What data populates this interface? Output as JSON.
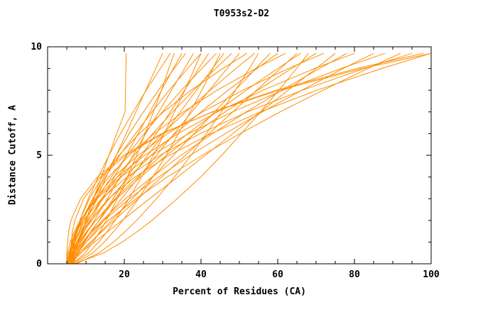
{
  "title": "T0953s2-D2",
  "chart_data": {
    "type": "line",
    "title": "T0953s2-D2",
    "xlabel": "Percent of Residues (CA)",
    "ylabel": "Distance Cutoff, A",
    "xlim": [
      0,
      100
    ],
    "ylim": [
      0,
      10
    ],
    "grid": false,
    "legend": "none",
    "line_color": "#ff8c00",
    "axis_color": "#000000",
    "x_ticks": {
      "major": [
        0,
        20,
        40,
        60,
        80,
        100
      ],
      "minor_step": 5,
      "labeled": [
        20,
        40,
        60,
        80,
        100
      ],
      "labels": [
        "20",
        "40",
        "60",
        "80",
        "100"
      ]
    },
    "y_ticks": {
      "major": [
        0,
        5,
        10
      ],
      "minor_step": 1,
      "labeled": [
        0,
        5,
        10
      ],
      "labels": [
        "0",
        "5",
        "10"
      ]
    },
    "y_levels": [
      0,
      0.5,
      1,
      1.5,
      2,
      3,
      4,
      5,
      6,
      7,
      8,
      9,
      9.7
    ],
    "series": [
      [
        6,
        7,
        8,
        9,
        10,
        12,
        14,
        16,
        18,
        20.2,
        20.3,
        20.4,
        20.5
      ],
      [
        5,
        6.3,
        7.6,
        8.9,
        10.2,
        12.7,
        15.3,
        17.9,
        20.5,
        23,
        25.6,
        28.2,
        30
      ],
      [
        5.5,
        5.9,
        6.6,
        7.4,
        8.4,
        10.6,
        13.2,
        16,
        19,
        22.3,
        25.7,
        29.4,
        32
      ],
      [
        6.5,
        9.8,
        11.9,
        13.7,
        15.3,
        18.2,
        20.8,
        23.2,
        25.4,
        27.6,
        29.7,
        31.6,
        33
      ],
      [
        5,
        6.5,
        8.1,
        9.6,
        11.2,
        14.3,
        17.4,
        20.5,
        23.6,
        26.7,
        29.7,
        32.8,
        35
      ],
      [
        6,
        6.5,
        7.2,
        8.2,
        9.3,
        11.8,
        14.7,
        17.9,
        21.3,
        25,
        28.9,
        33,
        36
      ],
      [
        5.5,
        7.2,
        8.8,
        10.5,
        12.2,
        15.6,
        18.9,
        22.3,
        25.6,
        29,
        32.3,
        35.7,
        38
      ],
      [
        6.5,
        10.7,
        13.3,
        15.6,
        17.6,
        21.2,
        24.5,
        27.6,
        30.4,
        33.1,
        35.8,
        38.3,
        40
      ],
      [
        5,
        5.5,
        6.5,
        7.6,
        8.8,
        11.8,
        15.1,
        18.8,
        22.9,
        27.2,
        31.7,
        36.5,
        40
      ],
      [
        6,
        7.9,
        9.7,
        11.6,
        13.4,
        17.1,
        20.8,
        24.6,
        28.3,
        32,
        35.7,
        39.4,
        42
      ],
      [
        5.5,
        6.1,
        7.1,
        8.3,
        9.7,
        13,
        16.6,
        20.7,
        25.2,
        29.9,
        34.9,
        40.2,
        44
      ],
      [
        7,
        11.8,
        14.8,
        17.3,
        19.6,
        23.7,
        27.4,
        30.9,
        34.1,
        37.2,
        40.2,
        43.1,
        45
      ],
      [
        5,
        7.1,
        9.2,
        11.3,
        13.5,
        17.7,
        21.9,
        26.1,
        30.4,
        34.6,
        38.8,
        43,
        46
      ],
      [
        6,
        6.7,
        7.7,
        9.1,
        10.6,
        14.1,
        18.2,
        22.6,
        27.4,
        32.6,
        38.1,
        43.8,
        48
      ],
      [
        5.5,
        7.8,
        10.1,
        12.4,
        14.7,
        19.3,
        23.8,
        28.4,
        33,
        37.6,
        42.2,
        46.8,
        50
      ],
      [
        6.5,
        6.6,
        7,
        7.6,
        8.4,
        10.9,
        14.2,
        18.6,
        23.9,
        30.2,
        37.4,
        45.7,
        52
      ],
      [
        5,
        5.8,
        7,
        8.6,
        10.4,
        14.5,
        19.2,
        24.4,
        30,
        36,
        42.4,
        49.1,
        54
      ],
      [
        7.5,
        13.4,
        17.2,
        20.3,
        23.2,
        28.4,
        33.1,
        37.4,
        41.4,
        45.3,
        49,
        52.6,
        55
      ],
      [
        6,
        8.7,
        11.4,
        14,
        16.7,
        22.1,
        27.4,
        32.8,
        38.2,
        43.5,
        48.9,
        54.3,
        58
      ],
      [
        5.5,
        6.4,
        7.8,
        9.5,
        11.5,
        16.1,
        21.3,
        27,
        33.3,
        40,
        47.1,
        54.6,
        60
      ],
      [
        6.5,
        6.6,
        7.1,
        7.8,
        8.9,
        11.8,
        15.9,
        21.3,
        27.8,
        35.4,
        44.2,
        54.3,
        62
      ],
      [
        5,
        8.1,
        11.2,
        14.3,
        17.4,
        23.6,
        29.7,
        35.9,
        42.1,
        48.3,
        54.5,
        60.7,
        65
      ],
      [
        6,
        6.9,
        8.5,
        10.4,
        12.6,
        17.6,
        23.4,
        29.7,
        36.6,
        44,
        51.8,
        60,
        66
      ],
      [
        7,
        14.6,
        19.4,
        23.5,
        27.2,
        33.8,
        39.9,
        45.4,
        50.5,
        55.5,
        60.3,
        64.9,
        68
      ],
      [
        5.5,
        6.5,
        8.2,
        10.2,
        12.6,
        18,
        24.2,
        31,
        38.4,
        46.3,
        54.8,
        63.6,
        70
      ],
      [
        6,
        6.2,
        6.7,
        7.6,
        8.8,
        12.3,
        17.2,
        23.6,
        31.3,
        40.4,
        50.9,
        62.8,
        72
      ],
      [
        5,
        8.6,
        12.2,
        15.8,
        19.4,
        26.6,
        33.9,
        41.1,
        48.3,
        55.5,
        62.7,
        70,
        75
      ],
      [
        6.5,
        7.6,
        9.5,
        11.7,
        14.3,
        20.3,
        27.2,
        34.8,
        43,
        51.8,
        61.1,
        70.9,
        78
      ],
      [
        5.5,
        5.7,
        6.3,
        7.3,
        8.7,
        12.6,
        18.2,
        25.3,
        34,
        44.3,
        56.2,
        69.6,
        80
      ],
      [
        6,
        7.2,
        9.3,
        11.8,
        14.7,
        21.3,
        28.9,
        37.2,
        46.3,
        56,
        66.3,
        77.1,
        85
      ],
      [
        5,
        5.2,
        5.9,
        7,
        8.5,
        12.9,
        19.1,
        27.1,
        36.8,
        48.2,
        61.4,
        76.5,
        88
      ],
      [
        6.5,
        7.8,
        10.1,
        12.8,
        15.9,
        23.1,
        31.2,
        40.3,
        50.2,
        60.6,
        71.8,
        83.5,
        92
      ],
      [
        5.5,
        5.7,
        6.4,
        7.6,
        9.3,
        14.1,
        20.7,
        29.3,
        39.8,
        52.1,
        66.4,
        82.6,
        95
      ],
      [
        6,
        6,
        6.2,
        6.5,
        7.1,
        9.4,
        13.7,
        20.4,
        30,
        42.9,
        59.6,
        80.6,
        98
      ],
      [
        7,
        7.3,
        8,
        9.2,
        11,
        15.9,
        22.8,
        31.7,
        42.6,
        55.5,
        70.2,
        87.1,
        100
      ],
      [
        5,
        5,
        5.2,
        5.5,
        6.1,
        8.6,
        13,
        19.8,
        29.7,
        43.1,
        60.4,
        82,
        100
      ]
    ]
  }
}
